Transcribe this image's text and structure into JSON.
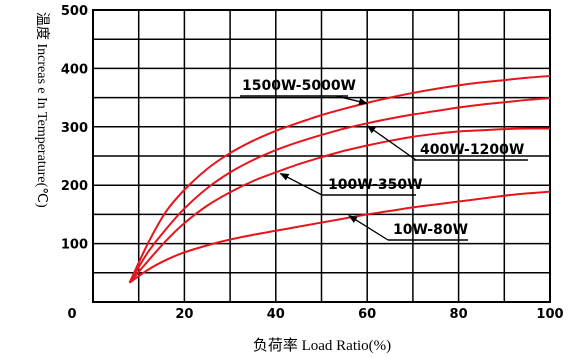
{
  "chart_data": {
    "type": "line",
    "xlabel": "负荷率 Load Ratio(%)",
    "ylabel": "温度 Increas e In Temperature(℃)",
    "xlim": [
      0,
      100
    ],
    "ylim": [
      0,
      500
    ],
    "x_ticks": [
      "0",
      "20",
      "40",
      "60",
      "80",
      "100"
    ],
    "y_ticks": [
      "0",
      "100",
      "200",
      "300",
      "400",
      "500"
    ],
    "grid": true,
    "series": [
      {
        "name": "1500W-5000W",
        "color": "#e8141c",
        "x": [
          8,
          12,
          16,
          20,
          25,
          30,
          35,
          40,
          45,
          50,
          55,
          60,
          65,
          70,
          75,
          80,
          85,
          90,
          95,
          100
        ],
        "y": [
          33,
          100,
          155,
          192,
          228,
          255,
          276,
          293,
          307,
          320,
          331,
          341,
          350,
          358,
          365,
          371,
          376,
          380,
          384,
          387
        ]
      },
      {
        "name": "400W-1200W",
        "color": "#e8141c",
        "x": [
          8,
          12,
          16,
          20,
          25,
          30,
          35,
          40,
          45,
          50,
          55,
          60,
          65,
          70,
          75,
          80,
          85,
          90,
          95,
          100
        ],
        "y": [
          33,
          85,
          125,
          160,
          195,
          222,
          243,
          260,
          274,
          286,
          297,
          306,
          314,
          321,
          327,
          333,
          338,
          342,
          346,
          349
        ]
      },
      {
        "name": "100W-350W",
        "color": "#e8141c",
        "x": [
          8,
          12,
          16,
          20,
          25,
          30,
          35,
          40,
          45,
          50,
          55,
          60,
          65,
          70,
          75,
          80,
          85,
          90,
          95,
          100
        ],
        "y": [
          33,
          70,
          105,
          135,
          165,
          188,
          207,
          222,
          236,
          248,
          259,
          268,
          276,
          283,
          288,
          292,
          294,
          296,
          297,
          297
        ]
      },
      {
        "name": "10W-80W",
        "color": "#e8141c",
        "x": [
          8,
          12,
          16,
          20,
          25,
          30,
          35,
          40,
          45,
          50,
          55,
          60,
          65,
          70,
          75,
          80,
          85,
          90,
          95,
          100
        ],
        "y": [
          33,
          55,
          72,
          85,
          97,
          107,
          115,
          122,
          129,
          136,
          143,
          150,
          156,
          162,
          167,
          172,
          177,
          182,
          186,
          189
        ]
      }
    ],
    "annotations": [
      {
        "label": "1500W-5000W",
        "arrow_to": [
          60,
          340
        ]
      },
      {
        "label": "400W-1200W",
        "arrow_to": [
          60,
          302
        ]
      },
      {
        "label": "100W-350W",
        "arrow_to": [
          41,
          220
        ]
      },
      {
        "label": "10W-80W",
        "arrow_to": [
          56,
          148
        ]
      }
    ]
  }
}
